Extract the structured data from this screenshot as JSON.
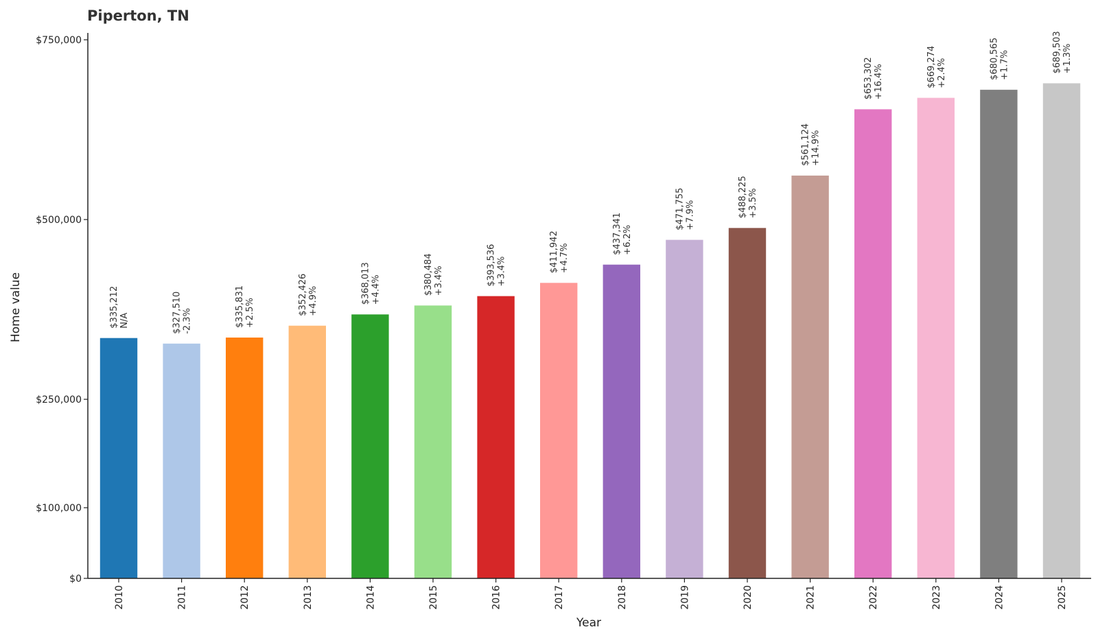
{
  "chart_data": {
    "type": "bar",
    "title": "Piperton, TN",
    "xlabel": "Year",
    "ylabel": "Home value",
    "categories": [
      "2010",
      "2011",
      "2012",
      "2013",
      "2014",
      "2015",
      "2016",
      "2017",
      "2018",
      "2019",
      "2020",
      "2021",
      "2022",
      "2023",
      "2024",
      "2025"
    ],
    "values": [
      335212,
      327510,
      335831,
      352426,
      368013,
      380484,
      393536,
      411942,
      437341,
      471755,
      488225,
      561124,
      653302,
      669274,
      680565,
      689503
    ],
    "value_labels": [
      "$335,212",
      "$327,510",
      "$335,831",
      "$352,426",
      "$368,013",
      "$380,484",
      "$393,536",
      "$411,942",
      "$437,341",
      "$471,755",
      "$488,225",
      "$561,124",
      "$653,302",
      "$669,274",
      "$680,565",
      "$689,503"
    ],
    "change_labels": [
      "N/A",
      "-2.3%",
      "+2.5%",
      "+4.9%",
      "+4.4%",
      "+3.4%",
      "+3.4%",
      "+4.7%",
      "+6.2%",
      "+7.9%",
      "+3.5%",
      "+14.9%",
      "+16.4%",
      "+2.4%",
      "+1.7%",
      "+1.3%"
    ],
    "colors": [
      "#1f77b4",
      "#aec7e8",
      "#ff7f0e",
      "#ffbb78",
      "#2ca02c",
      "#98df8a",
      "#d62728",
      "#ff9896",
      "#9467bd",
      "#c5b0d5",
      "#8c564b",
      "#c49c94",
      "#e377c2",
      "#f7b6d2",
      "#7f7f7f",
      "#c7c7c7"
    ],
    "yticks": [
      0,
      100000,
      250000,
      500000,
      750000
    ],
    "ytick_labels": [
      "$0",
      "$100,000",
      "$250,000",
      "$500,000",
      "$750,000"
    ],
    "ylim": [
      0,
      750000
    ],
    "grid": false,
    "legend": "none"
  }
}
